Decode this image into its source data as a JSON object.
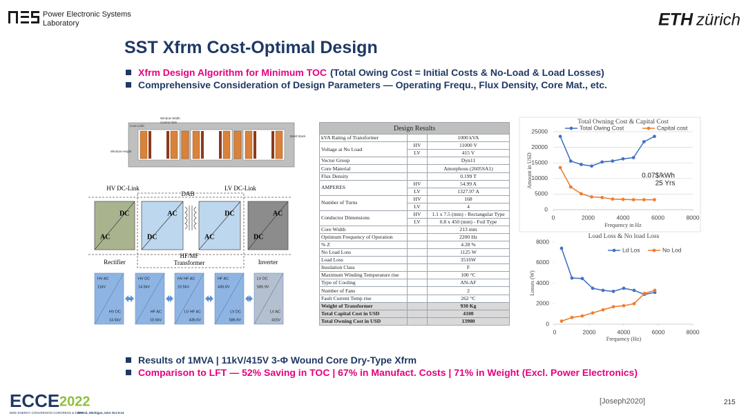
{
  "header": {
    "lab_name": [
      "Power Electronic Systems",
      "Laboratory"
    ],
    "eth": "ETH",
    "zurich": "zürich"
  },
  "title": "SST Xfrm Cost-Optimal Design",
  "top_bullets": [
    {
      "highlight": "Xfrm Design Algorithm for Minimum TOC",
      "text": "(Total Owing Cost = Initial Costs & No-Load & Load Losses)"
    },
    {
      "text": "Comprehensive Consideration of Design Parameters — Operating Frequ., Flux Density, Core Mat., etc."
    }
  ],
  "core_diagram": {
    "core_limb": "Core Limb",
    "window_width": "Window Width",
    "central_limb": "Central limb",
    "window_height": "Window Height",
    "build_stack": "Build Stack"
  },
  "dab_diagram": {
    "hv_dc_link": "HV DC-Link",
    "dab": "DAB",
    "lv_dc_link": "LV DC-Link",
    "blocks": [
      {
        "top": "DC",
        "bottom": "AC",
        "caption": "Rectifier"
      },
      {
        "top": "AC",
        "bottom": "DC"
      },
      {
        "top": "DC",
        "bottom": "AC"
      },
      {
        "top": "AC",
        "bottom": "DC",
        "caption": "Inverter"
      }
    ],
    "transformer": [
      "HF/MF",
      "Transformer"
    ]
  },
  "stages": [
    {
      "in": [
        "HV AC",
        "11kV"
      ],
      "out": [
        "HV DC",
        "14.5kV"
      ]
    },
    {
      "in": [
        "HV DC",
        "14.5kV"
      ],
      "out": [
        "HF AC",
        "10.5kV"
      ]
    },
    {
      "in": [
        "HV HF AC",
        "10.5kV"
      ],
      "out": [
        "LV HF AC",
        "436.6V"
      ]
    },
    {
      "in": [
        "HF AC",
        "436.6V"
      ],
      "out": [
        "LV DC",
        "586.9V"
      ]
    },
    {
      "in": [
        "LV DC",
        "586.9V"
      ],
      "out": [
        "LV AC",
        "415V"
      ]
    }
  ],
  "table": {
    "title": "Design Results",
    "rows": [
      {
        "label": "kVA Rating of Transformer",
        "value": "1000 kVA"
      },
      {
        "label": "Voltage at No Load",
        "sub": [
          {
            "name": "HV",
            "value": "11000 V"
          },
          {
            "name": "LV",
            "value": "415 V"
          }
        ]
      },
      {
        "label": "Vector Group",
        "value": "Dyn11"
      },
      {
        "label": "Core Material",
        "value": "Amorphous (2605SA1)"
      },
      {
        "label": "Flux Density",
        "value": "0.199 T"
      },
      {
        "label": "AMPERES",
        "sub": [
          {
            "name": "HV",
            "value": "54.99 A"
          },
          {
            "name": "LV",
            "value": "1327.97 A"
          }
        ]
      },
      {
        "label": "Number of Turns",
        "sub": [
          {
            "name": "HV",
            "value": "168"
          },
          {
            "name": "LV",
            "value": "4"
          }
        ]
      },
      {
        "label": "Conductor Dimensions",
        "sub": [
          {
            "name": "HV",
            "value": "1.1 x 7.5 (mm) - Rectangular Type"
          },
          {
            "name": "LV",
            "value": "0.8 x 450 (mm) - Foil Type"
          }
        ]
      },
      {
        "label": "Core Width",
        "value": "213 mm"
      },
      {
        "label": "Optimum Frequency of Operation",
        "value": "2200 Hz"
      },
      {
        "label": "% Z",
        "value": "4.28 %"
      },
      {
        "label": "No Load Loss",
        "value": "1125 W"
      },
      {
        "label": "Load Loss",
        "value": "3516W"
      },
      {
        "label": "Insulation Class",
        "value": "F"
      },
      {
        "label": "Maximum Winding Temperature rise",
        "value": "100 °C"
      },
      {
        "label": "Type of Cooling",
        "value": "AN-AF"
      },
      {
        "label": "Number of Fans",
        "value": "2"
      },
      {
        "label": "Fault Current Temp rise",
        "value": "262 °C"
      },
      {
        "label": "Weight of Transformer",
        "value": "930 Kg"
      },
      {
        "label": "Total Capital Cost in USD",
        "value": "4100"
      },
      {
        "label": "Total Owning Cost in USD",
        "value": "13900"
      }
    ]
  },
  "chart_data": [
    {
      "type": "line",
      "title": "Total Owning Cost & Capital Cost",
      "x_label": "Frequency in Hz",
      "y_label": "Amount in USD",
      "x": [
        400,
        1000,
        1600,
        2200,
        2800,
        3400,
        4000,
        4600,
        5200,
        5800
      ],
      "series": [
        {
          "name": "Total Owing Cost",
          "color": "#4472c4",
          "values": [
            23500,
            15600,
            14500,
            14000,
            15300,
            15600,
            16300,
            16700,
            21800,
            23500
          ]
        },
        {
          "name": "Capital cost",
          "color": "#ed7d31",
          "values": [
            13500,
            7300,
            5100,
            4100,
            3900,
            3400,
            3300,
            3200,
            3200,
            3200
          ]
        }
      ],
      "xlim": [
        0,
        8000
      ],
      "ylim": [
        0,
        25000
      ],
      "xticks": [
        0,
        2000,
        4000,
        6000,
        8000
      ],
      "yticks": [
        0,
        5000,
        10000,
        15000,
        20000,
        25000
      ],
      "grid": true,
      "legend": "top",
      "annotations": [
        "0.07$/kWh",
        "25 Yrs"
      ]
    },
    {
      "type": "line",
      "title": "Load Loss & No load Loss",
      "x_label": "Frequency (Hz)",
      "y_label": "Losses (W)",
      "x": [
        400,
        1000,
        1600,
        2200,
        2800,
        3400,
        4000,
        4600,
        5200,
        5800
      ],
      "series": [
        {
          "name": "Ld Los",
          "color": "#4472c4",
          "values": [
            7400,
            4500,
            4450,
            3500,
            3300,
            3200,
            3500,
            3300,
            2900,
            3100
          ]
        },
        {
          "name": "No Lod",
          "color": "#ed7d31",
          "values": [
            300,
            650,
            800,
            1100,
            1400,
            1700,
            1800,
            2000,
            3000,
            3300
          ]
        }
      ],
      "xlim": [
        0,
        8000
      ],
      "ylim": [
        0,
        8000
      ],
      "xticks": [
        0,
        2000,
        4000,
        6000,
        8000
      ],
      "yticks": [
        0,
        2000,
        4000,
        6000,
        8000
      ],
      "grid": false,
      "legend": "upper right"
    }
  ],
  "bottom_bullets": [
    {
      "text": "Results of 1MVA | 11kV/415V 3-Φ Wound Core Dry-Type Xfrm"
    },
    {
      "text": "Comparison to LFT —  52% Saving in TOC | 67% in Manufact. Costs | 71% in Weight (Excl. Power Electronics)"
    }
  ],
  "footer": {
    "reference": "[Joseph2020]",
    "page": 215,
    "conference": {
      "name": "ECCE",
      "year": "2022",
      "tagline": "IEEE ENERGY CONVERSION CONGRESS & EXPO",
      "location": "Detroit, Michigan, USA  Oct 9-13"
    }
  }
}
